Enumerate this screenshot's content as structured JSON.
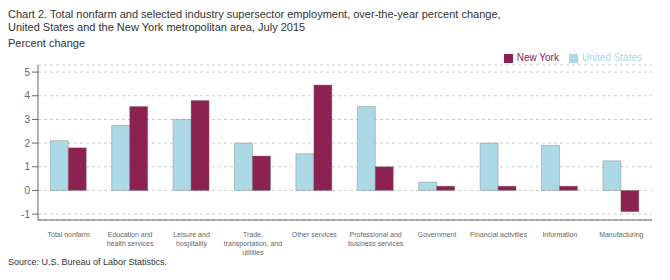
{
  "chart_data": {
    "type": "bar",
    "title": "Chart 2. Total nonfarm and selected industry supersector employment, over-the-year percent change,",
    "subtitle": "United States and the New York metropolitan area, July 2015",
    "ylabel": "Percent change",
    "annotations": [
      "Source: U.S. Bureau of Labor Statistics."
    ],
    "categories": [
      "Total nonfarm",
      "Education and\nhealth services",
      "Leisure and\nhospitality",
      "Trade,\ntransportation, and\nutilities",
      "Other services",
      "Professional and\nbusiness services",
      "Government",
      "Financial activities",
      "Information",
      "Manufacturing"
    ],
    "series": [
      {
        "name": "United States",
        "color": "#ADD8E6",
        "values": [
          2.1,
          2.75,
          3.0,
          2.0,
          1.55,
          3.55,
          0.35,
          2.0,
          1.9,
          1.25
        ]
      },
      {
        "name": "New York",
        "color": "#8B2252",
        "values": [
          1.8,
          3.55,
          3.8,
          1.45,
          4.45,
          1.0,
          0.18,
          0.18,
          0.18,
          -0.9
        ]
      }
    ],
    "ylim": [
      -1.25,
      5.3
    ],
    "yticks": [
      -1,
      0,
      1,
      2,
      3,
      4,
      5
    ],
    "grid": true,
    "legend": "upper right"
  }
}
